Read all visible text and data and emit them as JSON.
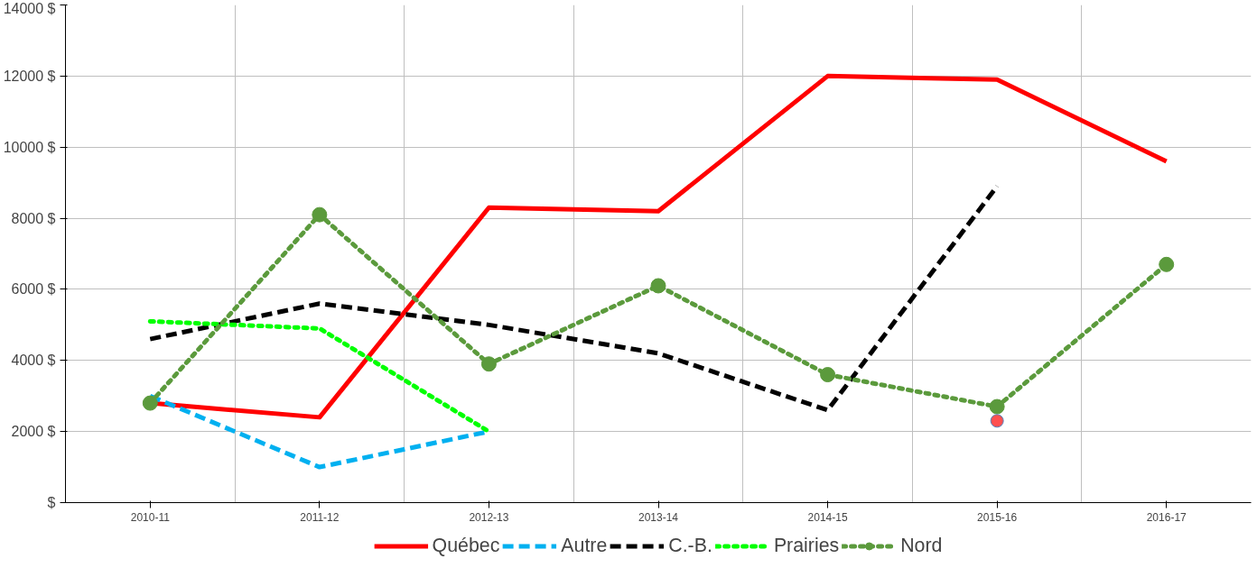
{
  "chart_data": {
    "type": "line",
    "categories": [
      "2010-11",
      "2011-12",
      "2012-13",
      "2013-14",
      "2014-15",
      "2015-16",
      "2016-17"
    ],
    "ylim": [
      0,
      14000
    ],
    "yticks": [
      {
        "value": 0,
        "label": "$"
      },
      {
        "value": 2000,
        "label": "2000 $"
      },
      {
        "value": 4000,
        "label": "4000 $"
      },
      {
        "value": 6000,
        "label": "6000 $"
      },
      {
        "value": 8000,
        "label": "8000 $"
      },
      {
        "value": 10000,
        "label": "10000 $"
      },
      {
        "value": 12000,
        "label": "12000 $"
      },
      {
        "value": 14000,
        "label": "14000 $"
      }
    ],
    "grid": true,
    "legend": "bottom",
    "marker": "none",
    "series": [
      {
        "name": "Québec",
        "color": "#ff0000",
        "line_style": "solid",
        "values": [
          2800,
          2400,
          8300,
          8200,
          12000,
          11900,
          9600
        ]
      },
      {
        "name": "Autre",
        "color": "#00b0f0",
        "line_style": "dashed",
        "values": [
          3000,
          1000,
          2000,
          null,
          null,
          null,
          null
        ]
      },
      {
        "name": "C.-B.",
        "color": "#000000",
        "line_style": "dashed",
        "values": [
          4600,
          5600,
          5000,
          4200,
          2600,
          8900,
          null
        ]
      },
      {
        "name": "Prairies",
        "color": "#00ff00",
        "line_style": "dotted",
        "values": [
          5100,
          4900,
          2000,
          null,
          null,
          null,
          null
        ]
      },
      {
        "name": "Nord",
        "color": "#5b9a3c",
        "line_style": "dotted",
        "marker": "circle",
        "values": [
          2800,
          8100,
          3900,
          6100,
          3600,
          2700,
          6700
        ]
      },
      {
        "type": "scatter",
        "color": "#ff5050",
        "marker": "circle",
        "x": [
          "2015-16"
        ],
        "values": [
          2300
        ]
      }
    ]
  }
}
